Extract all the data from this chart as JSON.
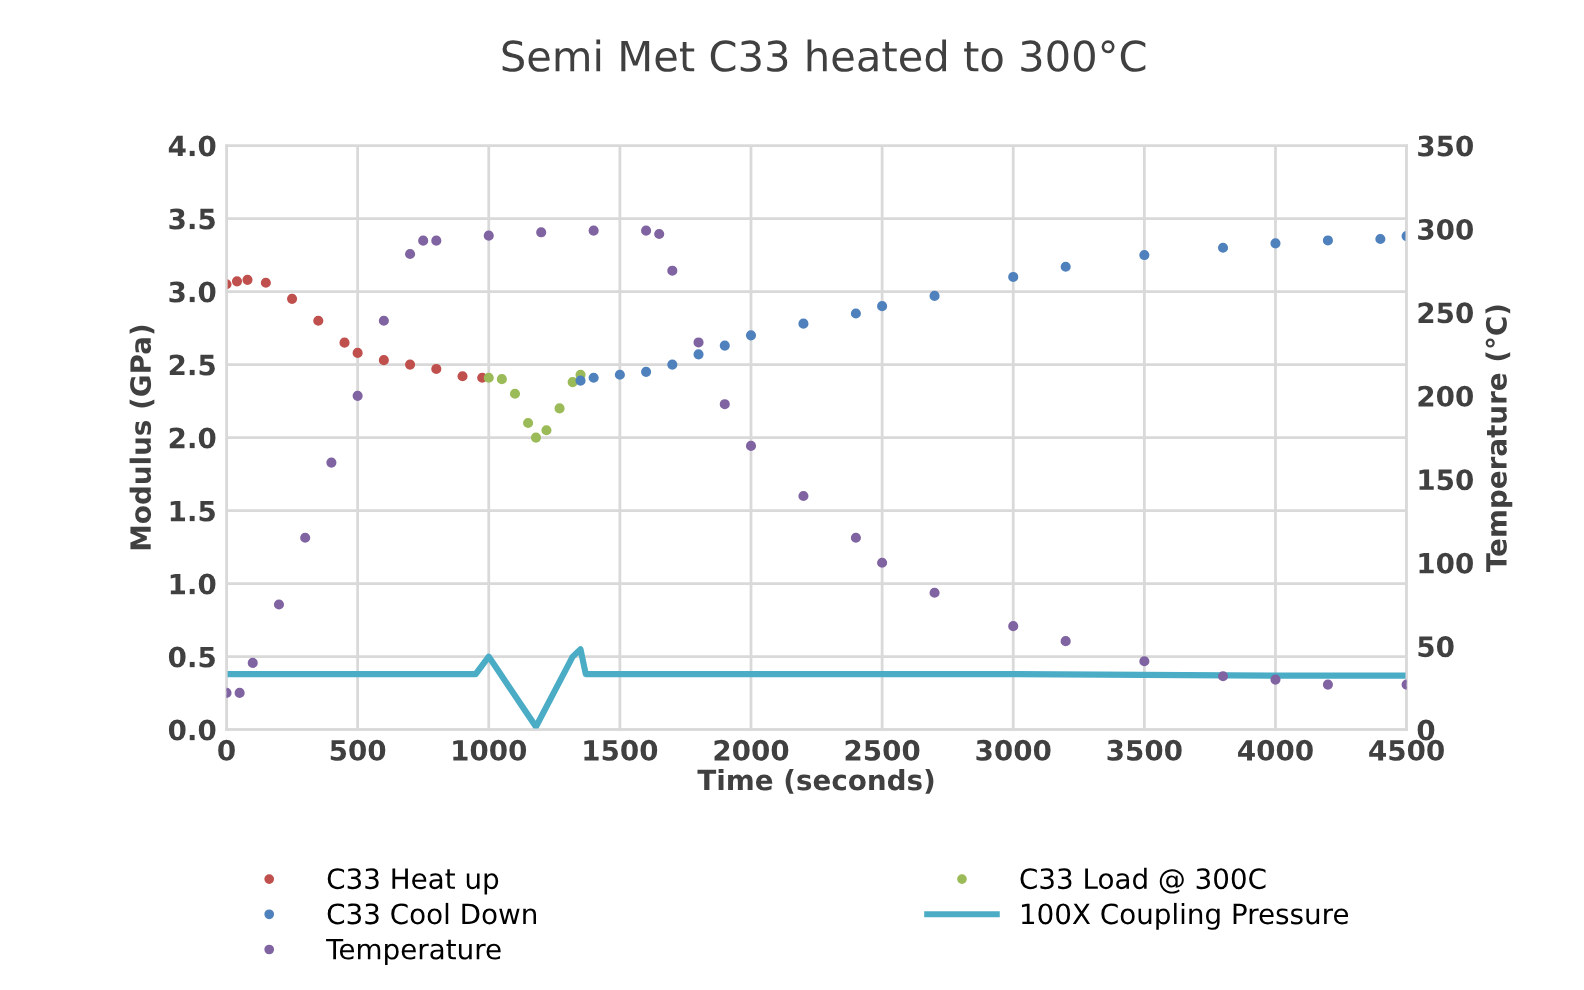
{
  "chart_data": {
    "type": "scatter",
    "title": "Semi Met C33 heated to 300°C",
    "xlabel": "Time (seconds)",
    "ylabel": "Modulus (GPa)",
    "y2label": "Temperature (°C)",
    "xlim": [
      0,
      4500
    ],
    "xticks": [
      0,
      500,
      1000,
      1500,
      2000,
      2500,
      3000,
      3500,
      4000,
      4500
    ],
    "ylim": [
      0,
      4
    ],
    "yticks": [
      {
        "value": 0,
        "label": "0.0"
      },
      {
        "value": 0.5,
        "label": "0.5"
      },
      {
        "value": 1,
        "label": "1.0"
      },
      {
        "value": 1.5,
        "label": "1.5"
      },
      {
        "value": 2,
        "label": "2.0"
      },
      {
        "value": 2.5,
        "label": "2.5"
      },
      {
        "value": 3,
        "label": "3.0"
      },
      {
        "value": 3.5,
        "label": "3.5"
      },
      {
        "value": 4,
        "label": "4.0"
      }
    ],
    "y2lim": [
      0,
      350
    ],
    "y2ticks": [
      0,
      50,
      100,
      150,
      200,
      250,
      300,
      350
    ],
    "grid": true,
    "legend": "bottom",
    "marker": "circle",
    "series": [
      {
        "name": "C33 Heat up",
        "color": "#c0504d",
        "x": [
          0,
          40,
          80,
          150,
          250,
          350,
          450,
          500,
          600,
          700,
          800,
          900,
          975
        ],
        "values": [
          3.05,
          3.07,
          3.08,
          3.06,
          2.95,
          2.8,
          2.65,
          2.58,
          2.53,
          2.5,
          2.47,
          2.42,
          2.41
        ]
      },
      {
        "name": "C33 Load @ 300C",
        "color": "#9bbb59",
        "x": [
          1000,
          1050,
          1100,
          1150,
          1180,
          1220,
          1270,
          1320,
          1350
        ],
        "values": [
          2.41,
          2.4,
          2.3,
          2.1,
          2.0,
          2.05,
          2.2,
          2.38,
          2.43
        ]
      },
      {
        "name": "C33 Cool Down",
        "color": "#4f81bd",
        "x": [
          1350,
          1400,
          1500,
          1600,
          1700,
          1800,
          1900,
          2000,
          2200,
          2400,
          2500,
          2700,
          3000,
          3200,
          3500,
          3800,
          4000,
          4200,
          4400,
          4500
        ],
        "values": [
          2.39,
          2.41,
          2.43,
          2.45,
          2.5,
          2.57,
          2.63,
          2.7,
          2.78,
          2.85,
          2.9,
          2.97,
          3.1,
          3.17,
          3.25,
          3.3,
          3.33,
          3.35,
          3.36,
          3.38
        ]
      },
      {
        "name": "100X Coupling Pressure",
        "type": "line",
        "color": "#4bacc6",
        "marker": "none",
        "x": [
          0,
          500,
          950,
          1000,
          1030,
          1180,
          1320,
          1350,
          1370,
          2000,
          3000,
          4000,
          4500
        ],
        "values": [
          0.38,
          0.38,
          0.38,
          0.5,
          0.42,
          0.02,
          0.5,
          0.55,
          0.38,
          0.38,
          0.38,
          0.37,
          0.37
        ]
      },
      {
        "name": "Temperature",
        "color": "#8064a2",
        "axis": "y2",
        "x": [
          0,
          50,
          100,
          200,
          300,
          400,
          500,
          600,
          700,
          750,
          800,
          1000,
          1200,
          1400,
          1600,
          1650,
          1700,
          1800,
          1900,
          2000,
          2200,
          2400,
          2500,
          2700,
          3000,
          3200,
          3500,
          3800,
          4000,
          4200,
          4500
        ],
        "values": [
          22,
          22,
          40,
          75,
          115,
          160,
          200,
          245,
          285,
          293,
          293,
          296,
          298,
          299,
          299,
          297,
          275,
          232,
          195,
          170,
          140,
          115,
          100,
          82,
          62,
          53,
          41,
          32,
          30,
          27,
          27
        ]
      }
    ]
  }
}
